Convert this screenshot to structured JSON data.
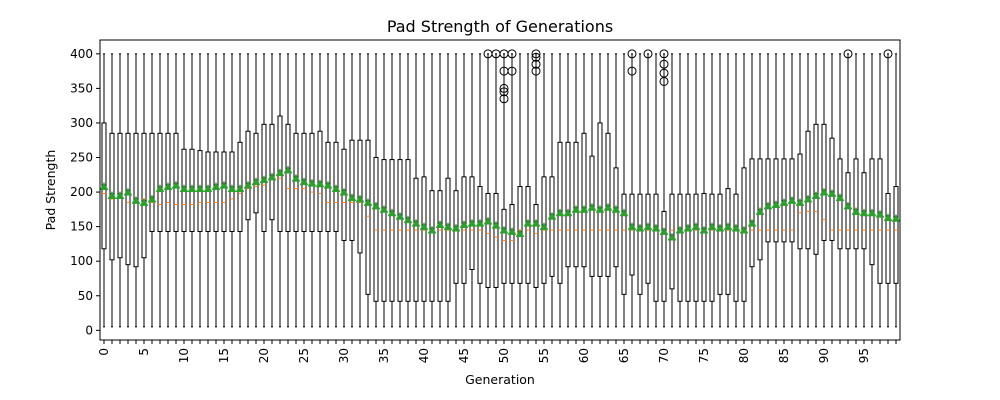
{
  "chart_data": {
    "type": "box",
    "title": "Pad Strength of Generations",
    "xlabel": "Generation",
    "ylabel": "Pad Strength",
    "ylim": [
      -14,
      420
    ],
    "y_ticks": [
      0,
      50,
      100,
      150,
      200,
      250,
      300,
      350,
      400
    ],
    "x_tick_labels": [
      "0",
      "5",
      "10",
      "15",
      "20",
      "25",
      "30",
      "35",
      "40",
      "45",
      "50",
      "55",
      "60",
      "65",
      "70",
      "75",
      "80",
      "85",
      "90",
      "95"
    ],
    "colors": {
      "box": "#000000",
      "median": "#ff7f0e",
      "mean_marker": "#2ca02c"
    },
    "whisker_low": 5,
    "whisker_high": 400,
    "generations": [
      0,
      1,
      2,
      3,
      4,
      5,
      6,
      7,
      8,
      9,
      10,
      11,
      12,
      13,
      14,
      15,
      16,
      17,
      18,
      19,
      20,
      21,
      22,
      23,
      24,
      25,
      26,
      27,
      28,
      29,
      30,
      31,
      32,
      33,
      34,
      35,
      36,
      37,
      38,
      39,
      40,
      41,
      42,
      43,
      44,
      45,
      46,
      47,
      48,
      49,
      50,
      51,
      52,
      53,
      54,
      55,
      56,
      57,
      58,
      59,
      60,
      61,
      62,
      63,
      64,
      65,
      66,
      67,
      68,
      69,
      70,
      71,
      72,
      73,
      74,
      75,
      76,
      77,
      78,
      79,
      80,
      81,
      82,
      83,
      84,
      85,
      86,
      87,
      88,
      89,
      90,
      91,
      92,
      93,
      94,
      95,
      96,
      97,
      98,
      99
    ],
    "q1": [
      118,
      102,
      105,
      95,
      92,
      105,
      143,
      143,
      143,
      143,
      143,
      143,
      143,
      143,
      143,
      143,
      143,
      143,
      160,
      170,
      143,
      160,
      143,
      143,
      143,
      143,
      143,
      143,
      143,
      143,
      130,
      130,
      112,
      52,
      42,
      42,
      42,
      42,
      42,
      42,
      42,
      42,
      42,
      42,
      68,
      68,
      88,
      68,
      62,
      62,
      68,
      68,
      68,
      68,
      62,
      68,
      78,
      68,
      92,
      92,
      92,
      78,
      78,
      78,
      92,
      52,
      80,
      52,
      68,
      42,
      42,
      60,
      42,
      42,
      42,
      42,
      42,
      52,
      52,
      42,
      42,
      92,
      102,
      128,
      128,
      128,
      128,
      118,
      118,
      110,
      130,
      130,
      118,
      118,
      118,
      118,
      95,
      68,
      68,
      68
    ],
    "q3": [
      300,
      285,
      285,
      285,
      285,
      285,
      285,
      285,
      285,
      285,
      262,
      262,
      260,
      258,
      258,
      258,
      258,
      272,
      288,
      285,
      298,
      298,
      310,
      298,
      285,
      285,
      285,
      288,
      272,
      272,
      262,
      275,
      275,
      275,
      250,
      247,
      247,
      247,
      247,
      220,
      222,
      202,
      202,
      220,
      202,
      222,
      222,
      208,
      198,
      198,
      175,
      182,
      208,
      208,
      182,
      222,
      222,
      272,
      272,
      272,
      285,
      252,
      300,
      285,
      235,
      197,
      197,
      197,
      197,
      197,
      172,
      197,
      197,
      197,
      197,
      198,
      197,
      197,
      205,
      197,
      235,
      248,
      248,
      248,
      248,
      248,
      248,
      255,
      288,
      298,
      298,
      278,
      248,
      228,
      248,
      228,
      248,
      248,
      198,
      208
    ],
    "median": [
      198,
      190,
      192,
      185,
      185,
      190,
      185,
      182,
      185,
      182,
      182,
      182,
      185,
      185,
      185,
      185,
      190,
      198,
      205,
      208,
      210,
      218,
      220,
      205,
      205,
      205,
      200,
      198,
      185,
      185,
      185,
      185,
      185,
      165,
      145,
      145,
      145,
      145,
      145,
      145,
      145,
      145,
      145,
      145,
      145,
      145,
      145,
      145,
      140,
      135,
      130,
      130,
      145,
      145,
      140,
      145,
      145,
      145,
      145,
      145,
      145,
      145,
      145,
      145,
      145,
      145,
      145,
      145,
      145,
      145,
      140,
      145,
      145,
      145,
      145,
      145,
      145,
      145,
      145,
      145,
      145,
      145,
      145,
      145,
      145,
      145,
      145,
      170,
      172,
      172,
      160,
      145,
      145,
      145,
      145,
      145,
      145,
      145,
      145,
      145
    ],
    "mean": [
      208,
      195,
      195,
      200,
      188,
      185,
      190,
      205,
      208,
      210,
      205,
      205,
      205,
      205,
      208,
      210,
      205,
      205,
      210,
      215,
      218,
      222,
      228,
      232,
      220,
      215,
      213,
      212,
      210,
      205,
      200,
      192,
      190,
      185,
      180,
      175,
      170,
      165,
      160,
      155,
      150,
      145,
      153,
      150,
      148,
      153,
      155,
      155,
      158,
      152,
      145,
      143,
      140,
      155,
      155,
      150,
      165,
      170,
      170,
      175,
      175,
      178,
      175,
      178,
      175,
      170,
      150,
      148,
      150,
      148,
      143,
      135,
      145,
      148,
      150,
      145,
      150,
      148,
      150,
      148,
      145,
      155,
      172,
      180,
      182,
      185,
      188,
      185,
      190,
      195,
      200,
      198,
      192,
      180,
      172,
      170,
      170,
      168,
      163,
      162
    ],
    "fliers": [
      {
        "x": 48,
        "values": [
          400
        ]
      },
      {
        "x": 49,
        "values": [
          400
        ]
      },
      {
        "x": 50,
        "values": [
          400,
          375,
          350,
          345,
          335
        ]
      },
      {
        "x": 51,
        "values": [
          400,
          375
        ]
      },
      {
        "x": 54,
        "values": [
          400,
          395,
          385,
          375
        ]
      },
      {
        "x": 66,
        "values": [
          400,
          375
        ]
      },
      {
        "x": 68,
        "values": [
          400
        ]
      },
      {
        "x": 70,
        "values": [
          400,
          385,
          372,
          360
        ]
      },
      {
        "x": 93,
        "values": [
          400
        ]
      },
      {
        "x": 98,
        "values": [
          400
        ]
      }
    ]
  }
}
